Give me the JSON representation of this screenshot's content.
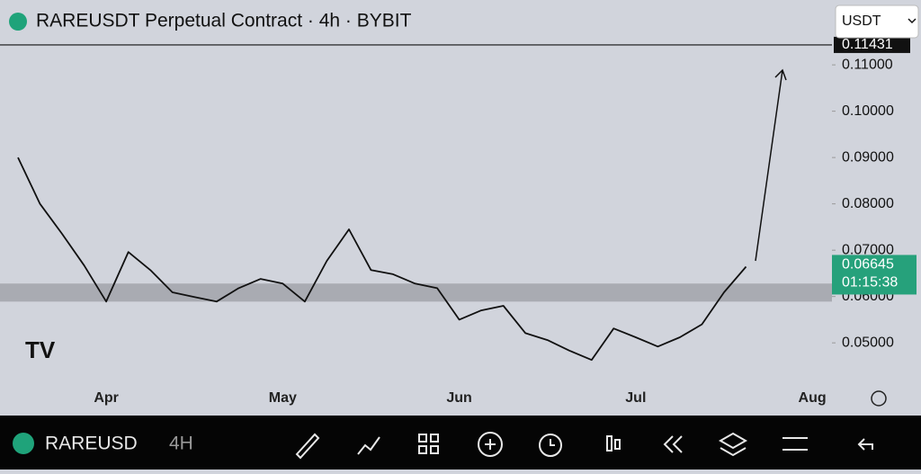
{
  "chart_data": {
    "type": "line",
    "title": "RAREUSDT Perpetual Contract · 4h · BYBIT",
    "categories": [
      null,
      null,
      null,
      null,
      "Apr",
      null,
      null,
      null,
      null,
      null,
      null,
      null,
      "May",
      null,
      null,
      null,
      null,
      null,
      null,
      null,
      "Jun",
      null,
      null,
      null,
      null,
      null,
      null,
      null,
      "Jul",
      null,
      null,
      null,
      null,
      null,
      null,
      null,
      "Aug"
    ],
    "series": [
      {
        "name": "RAREUSDT",
        "color": "#111111",
        "values": [
          0.09,
          0.08,
          0.0735,
          0.0667,
          0.0589,
          0.0696,
          0.0657,
          0.0609,
          0.0599,
          0.0589,
          0.0618,
          0.0638,
          0.0628,
          0.0589,
          0.0677,
          0.0745,
          0.0657,
          0.0648,
          0.0628,
          0.0618,
          0.055,
          0.057,
          0.058,
          0.0521,
          0.0506,
          0.0483,
          0.0463,
          0.0531,
          0.0512,
          0.0492,
          0.0512,
          0.054,
          0.0609,
          0.06645,
          null,
          null,
          null
        ]
      }
    ],
    "ylim": [
      0.0347,
      0.124
    ],
    "yticks": [
      {
        "value": 0.05,
        "label": "0.05000"
      },
      {
        "value": 0.06,
        "label": "0.06000"
      },
      {
        "value": 0.07,
        "label": "0.07000"
      },
      {
        "value": 0.08,
        "label": "0.08000"
      },
      {
        "value": 0.09,
        "label": "0.09000"
      },
      {
        "value": 0.1,
        "label": "0.10000"
      },
      {
        "value": 0.11,
        "label": "0.11000"
      }
    ],
    "zone": [
      0.0589,
      0.0628
    ],
    "level": 0.11431,
    "last_price": 0.06645,
    "countdown": "01:15:38"
  },
  "ui": {
    "currency": "USDT",
    "symbol": "RAREUSD",
    "interval": "4H"
  }
}
